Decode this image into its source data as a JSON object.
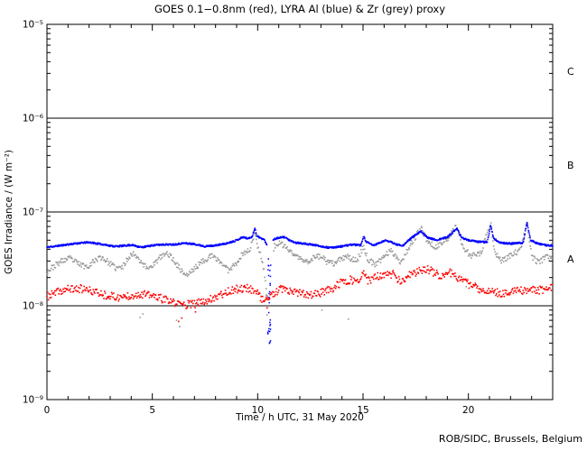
{
  "title": "GOES 0.1−0.8nm (red), LYRA Al (blue) & Zr (grey) proxy",
  "footer": "ROB/SIDC, Brussels, Belgium",
  "axes": {
    "x": {
      "label": "Time / h UTC, 31 May 2020",
      "min": 0,
      "max": 24,
      "minor_step_hours": 1,
      "ticks": [
        {
          "label": "0",
          "hour": 0
        },
        {
          "label": "5",
          "hour": 5
        },
        {
          "label": "10",
          "hour": 10
        },
        {
          "label": "15",
          "hour": 15
        },
        {
          "label": "20",
          "hour": 20
        }
      ]
    },
    "y": {
      "label": "GOES Irradiance / (W m⁻²)",
      "top_exp": -5,
      "bottom_exp": -9,
      "scale": "log",
      "ticks": [
        {
          "label": "10⁻⁵",
          "exp": -5
        },
        {
          "label": "10⁻⁶",
          "exp": -6
        },
        {
          "label": "10⁻⁷",
          "exp": -7
        },
        {
          "label": "10⁻⁸",
          "exp": -8
        },
        {
          "label": "10⁻⁹",
          "exp": -9
        }
      ]
    }
  },
  "class_boundary_exps": [
    -6,
    -7,
    -8
  ],
  "class_bands": [
    {
      "label": "C",
      "top_exp": -5,
      "bottom_exp": -6
    },
    {
      "label": "B",
      "top_exp": -6,
      "bottom_exp": -7
    },
    {
      "label": "A",
      "top_exp": -7,
      "bottom_exp": -8
    }
  ],
  "colors": {
    "goes_red": "#ff0000",
    "lyra_al_blue": "#0000ff",
    "lyra_zr_grey": "#999999",
    "axis_black": "#000000",
    "background": "#ffffff"
  },
  "chart_data": {
    "type": "scatter",
    "title": "GOES 0.1−0.8nm (red), LYRA Al (blue) & Zr (grey) proxy",
    "xlabel": "Time / h UTC, 31 May 2020",
    "ylabel": "GOES Irradiance / (W m⁻²)",
    "x_range_hours": [
      0,
      24
    ],
    "y_range_w_m2": [
      1e-09,
      1e-05
    ],
    "grid": false,
    "legend": "in title (color-coded)",
    "series": [
      {
        "id": "goes-0108nm",
        "name": "GOES 0.1-0.8nm",
        "color": "#ff0000",
        "cadence_min": 2,
        "noise_dex": 0.042,
        "seed": 37,
        "size": 1.6,
        "anchors": [
          [
            0,
            1.25e-08
          ],
          [
            0.5,
            1.4e-08
          ],
          [
            1,
            1.5e-08
          ],
          [
            1.6,
            1.52e-08
          ],
          [
            2.2,
            1.42e-08
          ],
          [
            2.8,
            1.3e-08
          ],
          [
            3.4,
            1.22e-08
          ],
          [
            4,
            1.3e-08
          ],
          [
            4.5,
            1.33e-08
          ],
          [
            5,
            1.28e-08
          ],
          [
            5.5,
            1.18e-08
          ],
          [
            6,
            1.08e-08
          ],
          [
            6.5,
            1.03e-08
          ],
          [
            7,
            1.04e-08
          ],
          [
            7.5,
            1.12e-08
          ],
          [
            8,
            1.25e-08
          ],
          [
            8.5,
            1.4e-08
          ],
          [
            9,
            1.5e-08
          ],
          [
            9.5,
            1.55e-08
          ],
          [
            9.9,
            1.45e-08
          ],
          [
            10.3,
            1.12e-08
          ],
          [
            10.7,
            1.3e-08
          ],
          [
            11.1,
            1.5e-08
          ],
          [
            11.5,
            1.42e-08
          ],
          [
            12,
            1.35e-08
          ],
          [
            12.5,
            1.3e-08
          ],
          [
            13,
            1.38e-08
          ],
          [
            13.5,
            1.5e-08
          ],
          [
            14,
            1.78e-08
          ],
          [
            14.4,
            1.9e-08
          ],
          [
            14.8,
            1.75e-08
          ],
          [
            15.03,
            2.25e-08
          ],
          [
            15.25,
            1.85e-08
          ],
          [
            15.7,
            2.05e-08
          ],
          [
            16.1,
            2.1e-08
          ],
          [
            16.45,
            2.2e-08
          ],
          [
            16.8,
            1.75e-08
          ],
          [
            17.2,
            2.1e-08
          ],
          [
            17.6,
            2.3e-08
          ],
          [
            18,
            2.5e-08
          ],
          [
            18.4,
            2.25e-08
          ],
          [
            18.8,
            2.05e-08
          ],
          [
            19.15,
            2.25e-08
          ],
          [
            19.6,
            1.95e-08
          ],
          [
            20,
            1.7e-08
          ],
          [
            20.5,
            1.52e-08
          ],
          [
            21,
            1.42e-08
          ],
          [
            21.5,
            1.36e-08
          ],
          [
            22,
            1.4e-08
          ],
          [
            22.5,
            1.44e-08
          ],
          [
            23,
            1.5e-08
          ],
          [
            23.5,
            1.46e-08
          ],
          [
            24,
            1.55e-08
          ]
        ],
        "outliers": [
          [
            6.25,
            6.8e-09
          ],
          [
            6.4,
            7.4e-09
          ],
          [
            7.05,
            8.6e-09
          ],
          [
            10.45,
            9.5e-09
          ]
        ]
      },
      {
        "id": "lyra-zr-proxy",
        "name": "LYRA Zr proxy",
        "color": "#999999",
        "cadence_min": 2,
        "noise_dex": 0.03,
        "seed": 23,
        "size": 1.6,
        "gaps": [
          [
            10.48,
            10.76
          ]
        ],
        "anchors": [
          [
            0,
            2.3e-08
          ],
          [
            0.3,
            2.6e-08
          ],
          [
            0.7,
            3e-08
          ],
          [
            1.1,
            3.2e-08
          ],
          [
            1.5,
            2.8e-08
          ],
          [
            1.9,
            2.6e-08
          ],
          [
            2.3,
            3.1e-08
          ],
          [
            2.6,
            3.3e-08
          ],
          [
            3.0,
            2.8e-08
          ],
          [
            3.3,
            2.5e-08
          ],
          [
            3.6,
            2.6e-08
          ],
          [
            3.9,
            3.4e-08
          ],
          [
            4.15,
            3.6e-08
          ],
          [
            4.45,
            3e-08
          ],
          [
            4.75,
            2.5e-08
          ],
          [
            5.1,
            2.8e-08
          ],
          [
            5.45,
            3.4e-08
          ],
          [
            5.75,
            3.6e-08
          ],
          [
            6.05,
            3e-08
          ],
          [
            6.35,
            2.4e-08
          ],
          [
            6.65,
            2.1e-08
          ],
          [
            7.0,
            2.5e-08
          ],
          [
            7.4,
            3e-08
          ],
          [
            7.8,
            3.4e-08
          ],
          [
            8.2,
            3e-08
          ],
          [
            8.6,
            2.4e-08
          ],
          [
            9.0,
            2.9e-08
          ],
          [
            9.3,
            3.6e-08
          ],
          [
            9.6,
            3.9e-08
          ],
          [
            9.87,
            5.8e-08
          ],
          [
            10.0,
            4.4e-08
          ],
          [
            10.15,
            3.5e-08
          ],
          [
            10.3,
            2.4e-08
          ],
          [
            10.46,
            1.2e-08
          ],
          [
            10.78,
            4.3e-08
          ],
          [
            11.0,
            4.6e-08
          ],
          [
            11.3,
            4.3e-08
          ],
          [
            11.6,
            3.7e-08
          ],
          [
            12.0,
            3.2e-08
          ],
          [
            12.3,
            2.9e-08
          ],
          [
            12.7,
            3.3e-08
          ],
          [
            13.0,
            3.4e-08
          ],
          [
            13.3,
            2.9e-08
          ],
          [
            13.6,
            2.8e-08
          ],
          [
            14.0,
            3.2e-08
          ],
          [
            14.3,
            3.3e-08
          ],
          [
            14.7,
            3e-08
          ],
          [
            15.03,
            4.3e-08
          ],
          [
            15.2,
            3.2e-08
          ],
          [
            15.6,
            2.7e-08
          ],
          [
            16.0,
            3.4e-08
          ],
          [
            16.35,
            3.9e-08
          ],
          [
            16.8,
            2.9e-08
          ],
          [
            17.2,
            4.3e-08
          ],
          [
            17.75,
            6.7e-08
          ],
          [
            18.1,
            4.7e-08
          ],
          [
            18.5,
            4.2e-08
          ],
          [
            19.0,
            5.2e-08
          ],
          [
            19.45,
            7.1e-08
          ],
          [
            19.75,
            4.2e-08
          ],
          [
            20.1,
            3.4e-08
          ],
          [
            20.6,
            3.6e-08
          ],
          [
            21.05,
            7.7e-08
          ],
          [
            21.25,
            3.8e-08
          ],
          [
            21.55,
            3e-08
          ],
          [
            22.0,
            3.4e-08
          ],
          [
            22.5,
            4e-08
          ],
          [
            22.78,
            7.9e-08
          ],
          [
            23.0,
            3.4e-08
          ],
          [
            23.3,
            2.9e-08
          ],
          [
            23.7,
            3.3e-08
          ],
          [
            24,
            3.1e-08
          ]
        ],
        "outliers": [
          [
            4.42,
            7.5e-09
          ],
          [
            4.55,
            8.2e-09
          ],
          [
            6.15,
            7e-09
          ],
          [
            6.3,
            6e-09
          ],
          [
            9.05,
            1.6e-08
          ],
          [
            10.4,
            1.3e-08
          ],
          [
            10.45,
            8e-09
          ],
          [
            10.5,
            5e-09
          ],
          [
            10.55,
            4e-09
          ],
          [
            13.05,
            9e-09
          ],
          [
            14.3,
            7.2e-09
          ],
          [
            19.9,
            1.6e-08
          ]
        ]
      },
      {
        "id": "lyra-al-proxy",
        "name": "LYRA Al proxy",
        "color": "#0000ff",
        "cadence_min": 1,
        "noise_dex": 0.009,
        "seed": 11,
        "size": 1.5,
        "gaps": [
          [
            10.44,
            10.72
          ]
        ],
        "anchors": [
          [
            0,
            4.2e-08
          ],
          [
            0.5,
            4.35e-08
          ],
          [
            1,
            4.5e-08
          ],
          [
            1.5,
            4.65e-08
          ],
          [
            2,
            4.75e-08
          ],
          [
            2.4,
            4.6e-08
          ],
          [
            2.8,
            4.45e-08
          ],
          [
            3.2,
            4.3e-08
          ],
          [
            3.6,
            4.35e-08
          ],
          [
            4,
            4.45e-08
          ],
          [
            4.5,
            4.2e-08
          ],
          [
            5,
            4.4e-08
          ],
          [
            5.5,
            4.5e-08
          ],
          [
            6,
            4.5e-08
          ],
          [
            6.5,
            4.65e-08
          ],
          [
            7,
            4.55e-08
          ],
          [
            7.5,
            4.3e-08
          ],
          [
            8,
            4.4e-08
          ],
          [
            8.5,
            4.6e-08
          ],
          [
            9,
            5e-08
          ],
          [
            9.3,
            5.4e-08
          ],
          [
            9.55,
            5.2e-08
          ],
          [
            9.75,
            5.5e-08
          ],
          [
            9.87,
            6.8e-08
          ],
          [
            9.95,
            5.6e-08
          ],
          [
            10.1,
            5.3e-08
          ],
          [
            10.3,
            5.1e-08
          ],
          [
            10.42,
            4.5e-08
          ],
          [
            10.75,
            5.1e-08
          ],
          [
            11,
            5.3e-08
          ],
          [
            11.3,
            5.4e-08
          ],
          [
            11.55,
            4.9e-08
          ],
          [
            11.8,
            4.7e-08
          ],
          [
            12.2,
            4.6e-08
          ],
          [
            12.8,
            4.4e-08
          ],
          [
            13.4,
            4.15e-08
          ],
          [
            14,
            4.3e-08
          ],
          [
            14.5,
            4.5e-08
          ],
          [
            14.9,
            4.4e-08
          ],
          [
            15.03,
            5.5e-08
          ],
          [
            15.15,
            4.8e-08
          ],
          [
            15.5,
            4.4e-08
          ],
          [
            15.9,
            4.8e-08
          ],
          [
            16.1,
            5e-08
          ],
          [
            16.6,
            4.5e-08
          ],
          [
            16.9,
            4.4e-08
          ],
          [
            17.3,
            5.3e-08
          ],
          [
            17.75,
            6.2e-08
          ],
          [
            18.1,
            5.3e-08
          ],
          [
            18.5,
            5e-08
          ],
          [
            19,
            5.4e-08
          ],
          [
            19.45,
            6.6e-08
          ],
          [
            19.7,
            5.3e-08
          ],
          [
            20,
            5e-08
          ],
          [
            20.5,
            4.8e-08
          ],
          [
            20.9,
            4.8e-08
          ],
          [
            21.05,
            7.2e-08
          ],
          [
            21.2,
            5.2e-08
          ],
          [
            21.5,
            4.7e-08
          ],
          [
            22,
            4.6e-08
          ],
          [
            22.6,
            4.7e-08
          ],
          [
            22.78,
            7.7e-08
          ],
          [
            22.95,
            5e-08
          ],
          [
            23.3,
            4.6e-08
          ],
          [
            23.7,
            4.4e-08
          ],
          [
            24,
            4.4e-08
          ]
        ],
        "dropout": {
          "h_range": [
            10.46,
            10.62
          ],
          "v_range": [
            3.8e-09,
            3.2e-08
          ],
          "count": 28
        }
      }
    ]
  }
}
